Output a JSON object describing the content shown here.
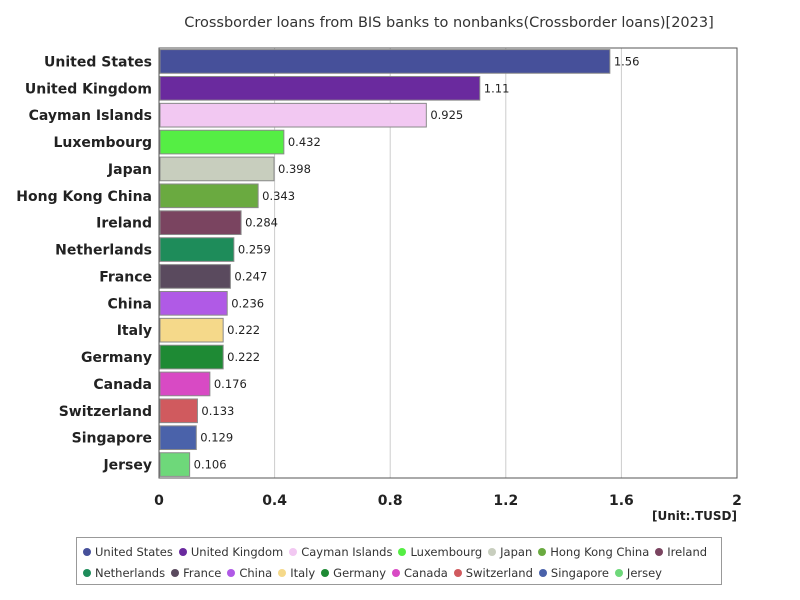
{
  "chart_data": {
    "type": "bar",
    "orientation": "horizontal",
    "title": "Crossborder loans from BIS banks to nonbanks(Crossborder loans)[2023]",
    "unit_label": "[Unit:.TUSD]",
    "categories": [
      "United States",
      "United Kingdom",
      "Cayman Islands",
      "Luxembourg",
      "Japan",
      "Hong Kong China",
      "Ireland",
      "Netherlands",
      "France",
      "China",
      "Italy",
      "Germany",
      "Canada",
      "Switzerland",
      "Singapore",
      "Jersey"
    ],
    "values": [
      1.56,
      1.11,
      0.925,
      0.432,
      0.398,
      0.343,
      0.284,
      0.259,
      0.247,
      0.236,
      0.222,
      0.222,
      0.176,
      0.133,
      0.129,
      0.106
    ],
    "value_labels": [
      "1.56",
      "1.11",
      "0.925",
      "0.432",
      "0.398",
      "0.343",
      "0.284",
      "0.259",
      "0.247",
      "0.236",
      "0.222",
      "0.222",
      "0.176",
      "0.133",
      "0.129",
      "0.106"
    ],
    "colors": [
      "#46509a",
      "#6a2a9e",
      "#f2c8f2",
      "#55ee44",
      "#c8cebe",
      "#6aaa40",
      "#7a4460",
      "#1e8c5a",
      "#5a4a5e",
      "#b05ae6",
      "#f5d98a",
      "#1e8a34",
      "#d84ac4",
      "#d05a5e",
      "#4a62aa",
      "#6ed87a"
    ],
    "xlim": [
      0,
      2
    ],
    "xticks": [
      0,
      0.4,
      0.8,
      1.2,
      1.6,
      2
    ],
    "xtick_labels": [
      "0",
      "0.4",
      "0.8",
      "1.2",
      "1.6",
      "2"
    ],
    "grid": true,
    "legend_position": "bottom"
  }
}
